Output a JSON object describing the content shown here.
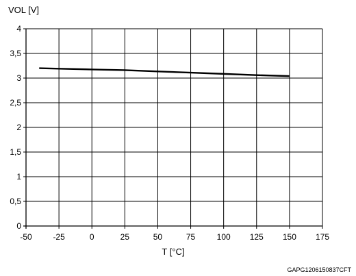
{
  "chart_data": {
    "type": "line",
    "ylabel": "VOL [V]",
    "xlabel": "T [°C]",
    "xlim": [
      -50,
      175
    ],
    "ylim": [
      0,
      4
    ],
    "xticks": [
      -50,
      -25,
      0,
      25,
      50,
      75,
      100,
      125,
      150,
      175
    ],
    "yticks": [
      0,
      0.5,
      1,
      1.5,
      2,
      2.5,
      3,
      3.5,
      4
    ],
    "x_tick_labels": [
      "-50",
      "-25",
      "0",
      "25",
      "50",
      "75",
      "100",
      "125",
      "150",
      "175"
    ],
    "y_tick_labels": [
      "0",
      "0,5",
      "1",
      "1,5",
      "2",
      "2,5",
      "3",
      "3,5",
      "4"
    ],
    "grid": true,
    "series": [
      {
        "x": [
          -40,
          -25,
          0,
          25,
          50,
          75,
          100,
          125,
          150
        ],
        "y": [
          3.2,
          3.19,
          3.175,
          3.16,
          3.135,
          3.11,
          3.085,
          3.06,
          3.04
        ]
      }
    ],
    "line_color": "#000000",
    "grid_color": "#000000",
    "code": "GAPG1206150837CFT"
  }
}
